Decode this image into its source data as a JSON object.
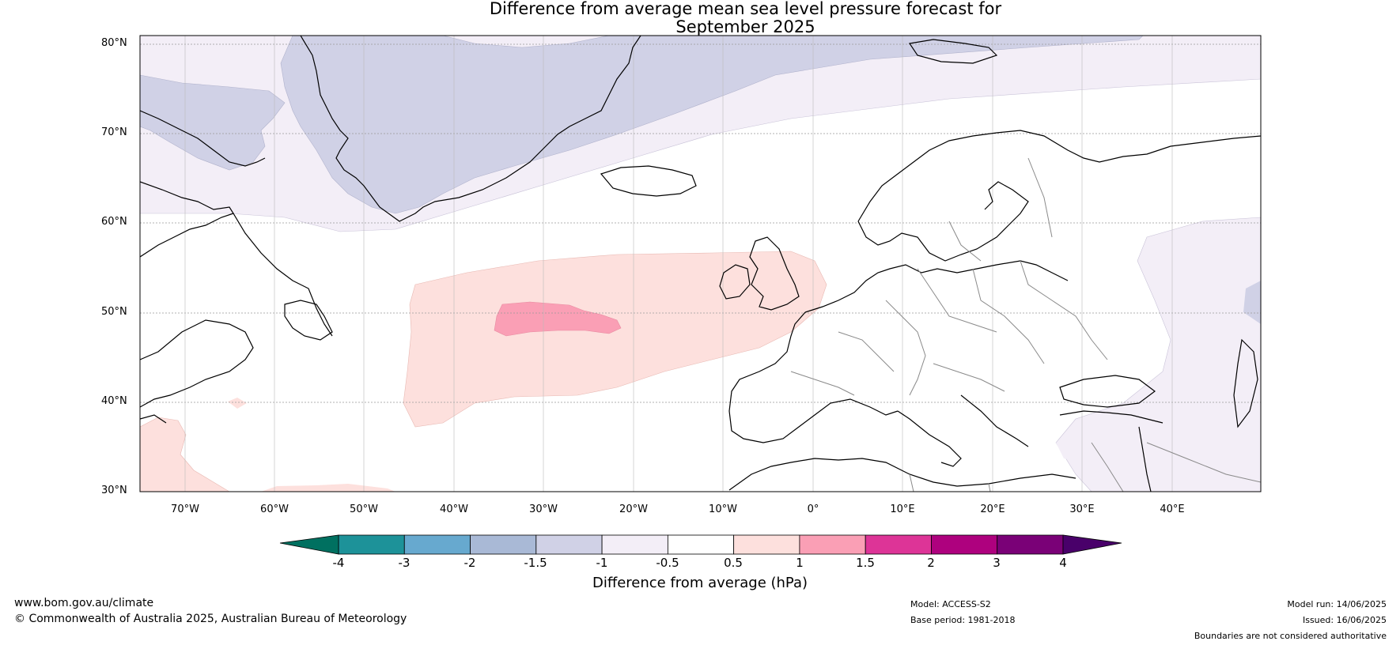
{
  "title_line1": "Difference from average mean sea level pressure forecast for",
  "title_line2": "September 2025",
  "latitude_labels": [
    "80°N",
    "70°N",
    "60°N",
    "50°N",
    "40°N",
    "30°N"
  ],
  "longitude_labels": [
    "70°W",
    "60°W",
    "50°W",
    "40°W",
    "30°W",
    "20°W",
    "10°W",
    "0°",
    "10°E",
    "20°E",
    "30°E",
    "40°E"
  ],
  "colorbar": {
    "title": "Difference from average (hPa)",
    "ticks": [
      "-4",
      "-3",
      "-2",
      "-1.5",
      "-1",
      "-0.5",
      "0.5",
      "1",
      "1.5",
      "2",
      "3",
      "4"
    ],
    "colors": [
      "#007060",
      "#1d9299",
      "#67a9cf",
      "#a9b9d6",
      "#d0d1e6",
      "#f3eef7",
      "#ffffff",
      "#fde0dd",
      "#fa9fb5",
      "#dd3497",
      "#ae017e",
      "#7a0177",
      "#49006a"
    ]
  },
  "footer": {
    "website": "www.bom.gov.au/climate",
    "copyright": "© Commonwealth of Australia 2025, Australian Bureau of Meteorology",
    "model": "Model: ACCESS-S2",
    "base_period": "Base period: 1981-2018",
    "model_run": "Model run: 14/06/2025",
    "issued": "Issued: 16/06/2025",
    "disclaimer": "Boundaries are not considered authoritative"
  }
}
